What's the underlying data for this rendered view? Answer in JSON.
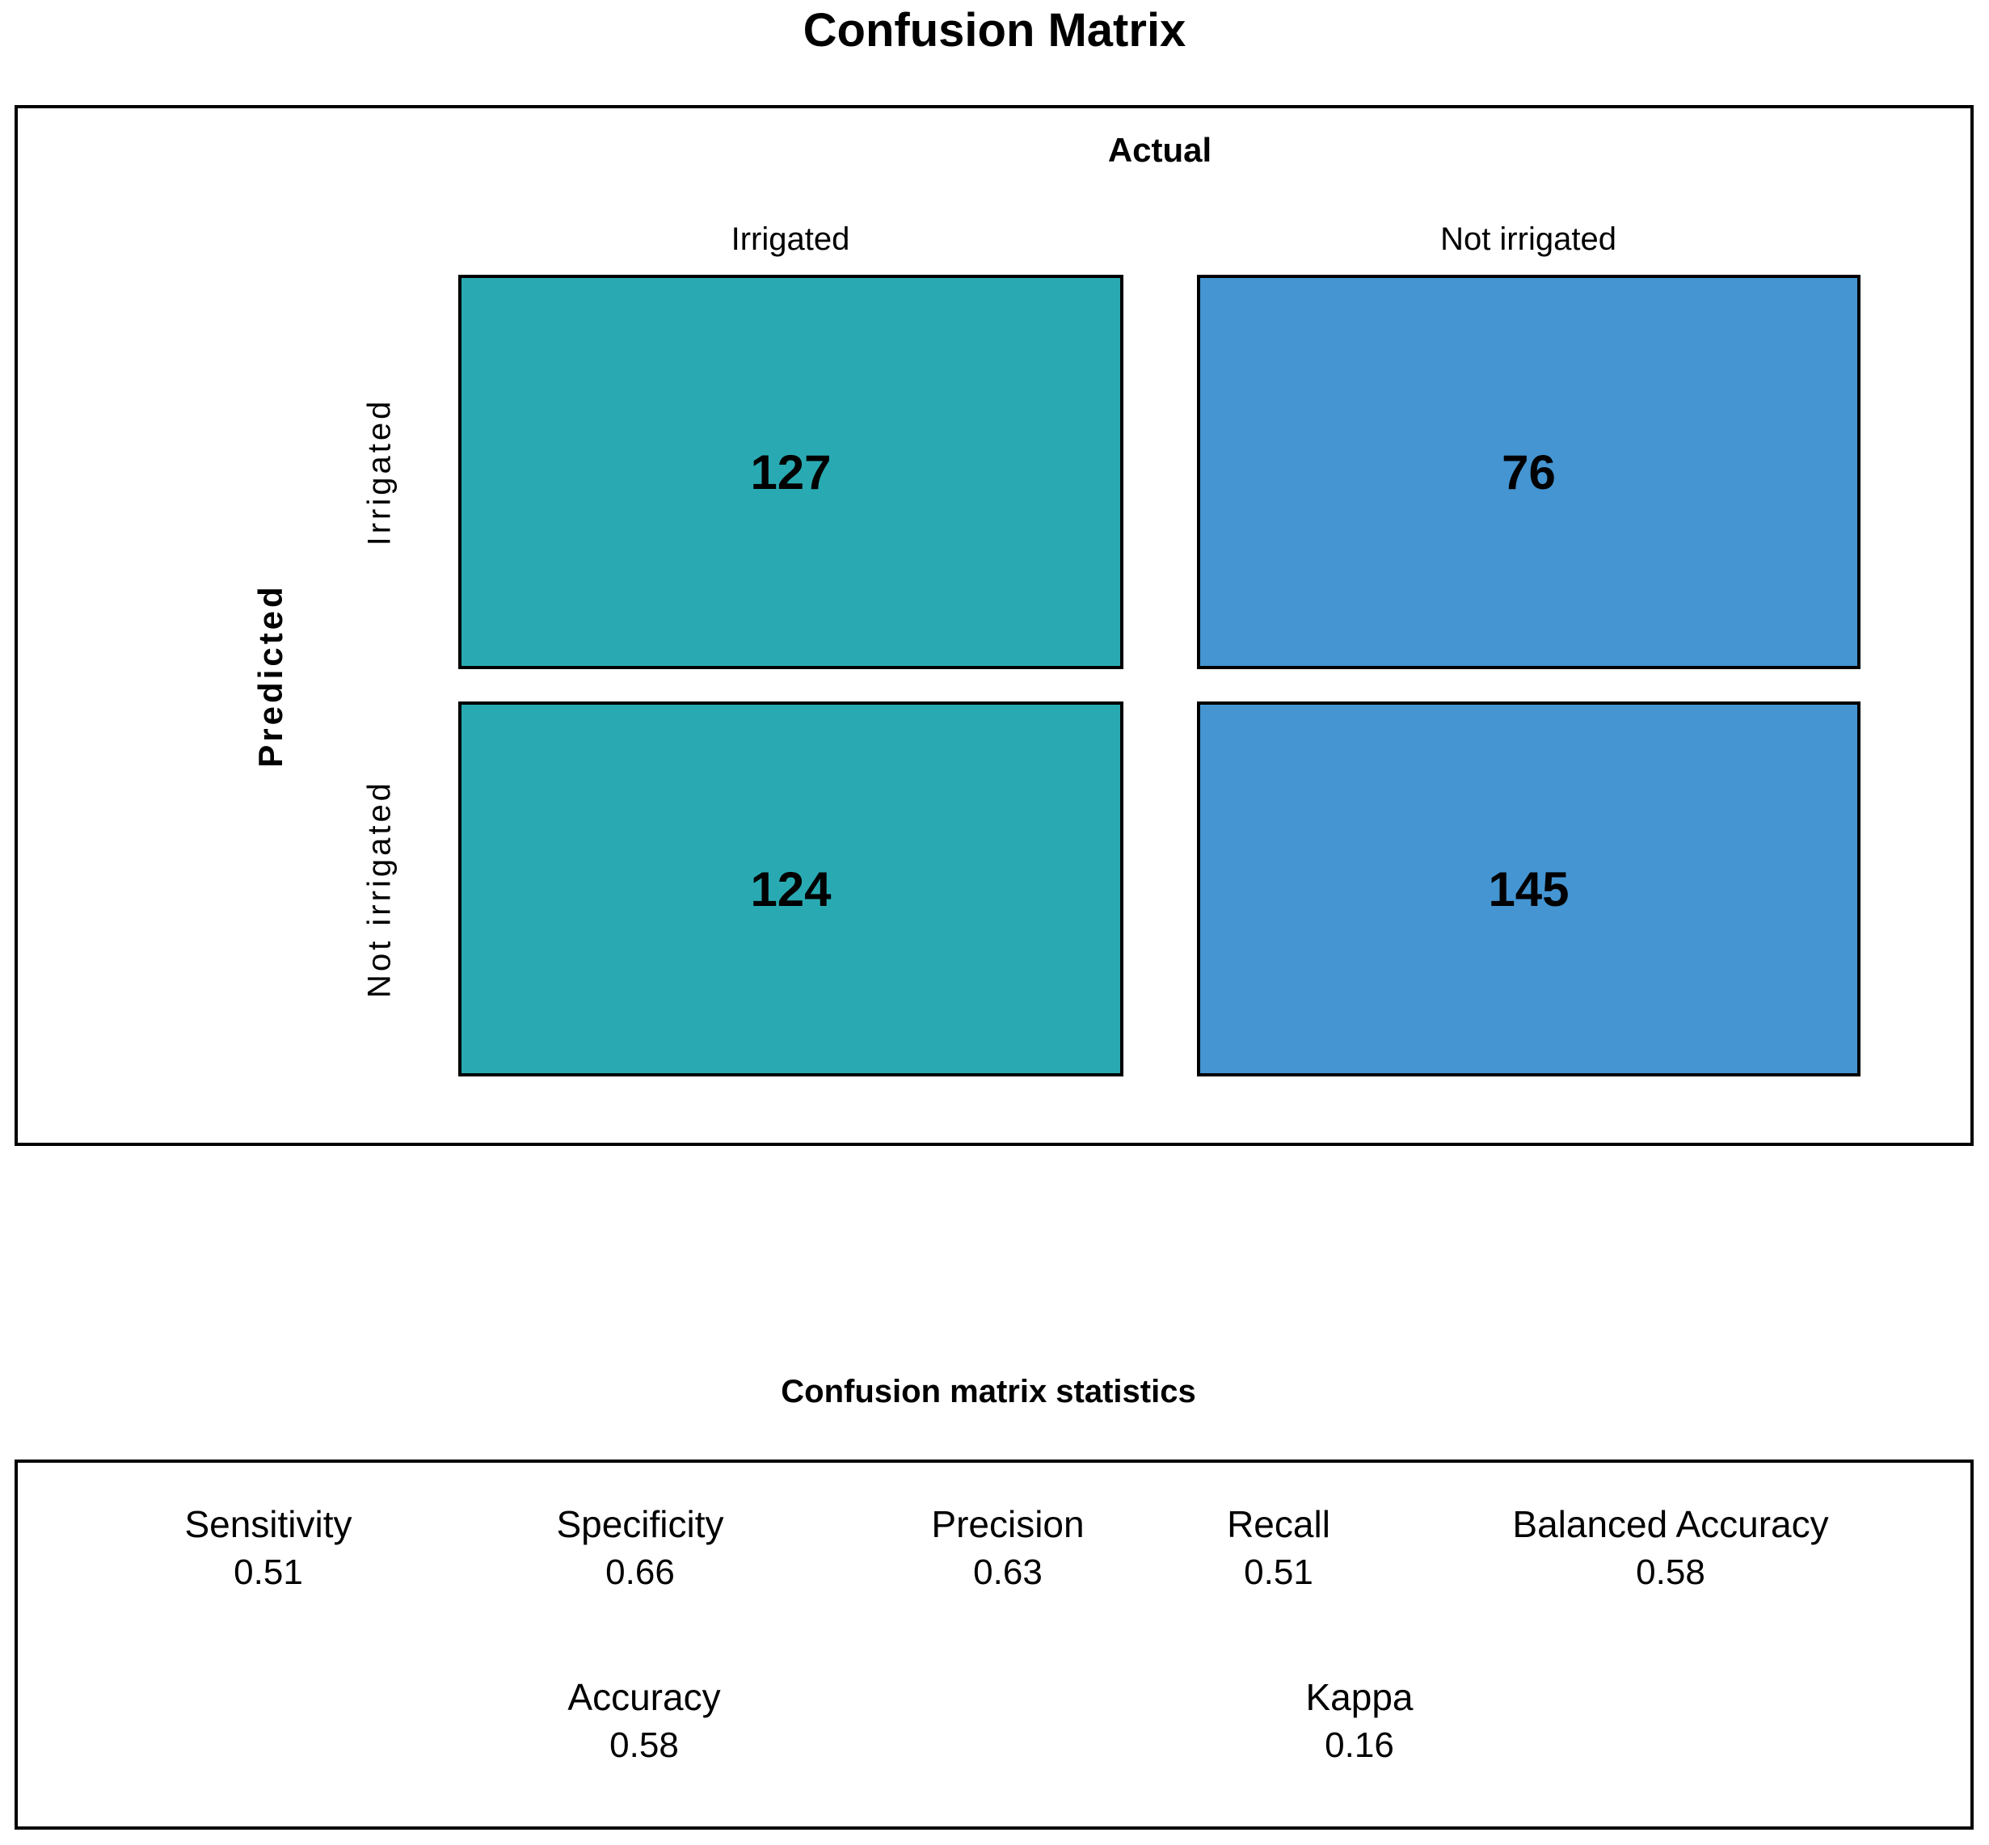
{
  "chart_data": {
    "type": "heatmap",
    "title": "Confusion Matrix",
    "x_label": "Actual",
    "y_label": "Predicted",
    "x_categories": [
      "Irrigated",
      "Not irrigated"
    ],
    "y_categories": [
      "Irrigated",
      "Not irrigated"
    ],
    "values": [
      [
        127,
        76
      ],
      [
        124,
        145
      ]
    ],
    "colors": {
      "irrigated_column": "#29AAB2",
      "not_irrigated_column": "#4495D2",
      "cell_border": "#000000",
      "text": "#000000"
    },
    "legend_position": "none",
    "grid": false
  },
  "stats": {
    "title": "Confusion matrix statistics",
    "row1": [
      {
        "label": "Sensitivity",
        "value": "0.51"
      },
      {
        "label": "Specificity",
        "value": "0.66"
      },
      {
        "label": "Precision",
        "value": "0.63"
      },
      {
        "label": "Recall",
        "value": "0.51"
      },
      {
        "label": "Balanced Accuracy",
        "value": "0.58"
      }
    ],
    "row2": [
      {
        "label": "Accuracy",
        "value": "0.58"
      },
      {
        "label": "Kappa",
        "value": "0.16"
      }
    ]
  }
}
